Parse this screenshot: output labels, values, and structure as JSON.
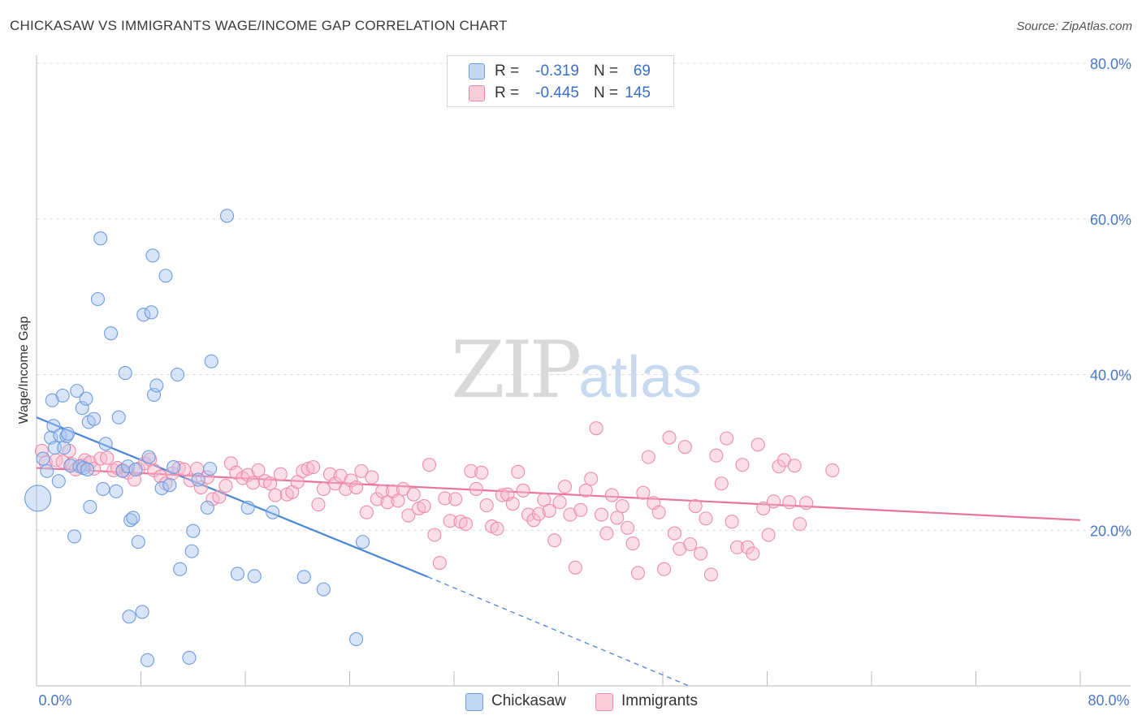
{
  "title": "CHICKASAW VS IMMIGRANTS WAGE/INCOME GAP CORRELATION CHART",
  "source": "Source: ZipAtlas.com",
  "watermark": {
    "zip": "ZIP",
    "atlas": "atlas"
  },
  "legend": {
    "rows": [
      {
        "r_label": "R =",
        "r_value": "-0.319",
        "n_label": "N =",
        "n_value": "69",
        "color": "#a9c6ef",
        "stroke": "#6f9be0"
      },
      {
        "r_label": "R =",
        "r_value": "-0.445",
        "n_label": "N =",
        "n_value": "145",
        "color": "#f7b8cb",
        "stroke": "#ee8daa"
      }
    ]
  },
  "bottom_legend": [
    {
      "label": "Chickasaw",
      "color": "#a9c6ef",
      "stroke": "#6f9be0"
    },
    {
      "label": "Immigrants",
      "color": "#f7b8cb",
      "stroke": "#ee8daa"
    }
  ],
  "chart_data": {
    "type": "scatter",
    "xlabel": "",
    "ylabel": "Wage/Income Gap",
    "xlim": [
      0,
      80
    ],
    "ylim": [
      0,
      80
    ],
    "x_tick_labels": [
      "0.0%",
      "80.0%"
    ],
    "y_tick_labels": [
      "20.0%",
      "40.0%",
      "60.0%",
      "80.0%"
    ],
    "y_ticks": [
      20,
      40,
      60,
      80
    ],
    "grid": "horizontal dashed",
    "legend_position": "top-center",
    "colors": {
      "chickasaw": "#4a86d8",
      "immigrants": "#e8739b"
    },
    "series": [
      {
        "name": "Chickasaw",
        "trend": {
          "x0": 0,
          "y0": 34.5,
          "x1": 30,
          "y1": 14,
          "dashed_to_x": 50,
          "dashed_to_y": 0
        },
        "points": [
          [
            0.1,
            24.1
          ],
          [
            0.5,
            29.2
          ],
          [
            0.8,
            27.6
          ],
          [
            1.1,
            31.9
          ],
          [
            1.3,
            33.4
          ],
          [
            1.2,
            36.7
          ],
          [
            1.4,
            30.6
          ],
          [
            1.7,
            26.3
          ],
          [
            1.8,
            32.2
          ],
          [
            2.0,
            37.3
          ],
          [
            2.1,
            30.6
          ],
          [
            2.3,
            32.1
          ],
          [
            2.4,
            32.4
          ],
          [
            2.6,
            28.3
          ],
          [
            2.9,
            19.2
          ],
          [
            3.1,
            37.9
          ],
          [
            3.3,
            28.2
          ],
          [
            3.5,
            35.7
          ],
          [
            3.6,
            28.0
          ],
          [
            3.8,
            36.9
          ],
          [
            3.9,
            27.8
          ],
          [
            4.0,
            33.9
          ],
          [
            4.1,
            23.0
          ],
          [
            4.4,
            34.3
          ],
          [
            4.7,
            49.7
          ],
          [
            4.9,
            57.5
          ],
          [
            5.1,
            25.3
          ],
          [
            5.3,
            31.1
          ],
          [
            5.7,
            45.3
          ],
          [
            6.1,
            25.0
          ],
          [
            6.3,
            34.5
          ],
          [
            6.6,
            27.6
          ],
          [
            6.8,
            40.2
          ],
          [
            7.0,
            28.2
          ],
          [
            7.1,
            8.9
          ],
          [
            7.2,
            21.3
          ],
          [
            7.4,
            21.6
          ],
          [
            7.6,
            27.8
          ],
          [
            7.8,
            18.5
          ],
          [
            8.1,
            9.5
          ],
          [
            8.2,
            47.7
          ],
          [
            8.5,
            3.3
          ],
          [
            8.6,
            29.4
          ],
          [
            8.8,
            48.0
          ],
          [
            8.9,
            55.3
          ],
          [
            9.0,
            37.4
          ],
          [
            9.2,
            38.6
          ],
          [
            9.6,
            25.4
          ],
          [
            9.9,
            52.7
          ],
          [
            10.2,
            25.8
          ],
          [
            10.5,
            28.1
          ],
          [
            10.8,
            40.0
          ],
          [
            11.0,
            15.0
          ],
          [
            11.7,
            3.6
          ],
          [
            11.9,
            17.3
          ],
          [
            12.0,
            19.9
          ],
          [
            12.4,
            26.5
          ],
          [
            13.1,
            22.9
          ],
          [
            13.3,
            27.9
          ],
          [
            13.4,
            41.7
          ],
          [
            14.6,
            60.4
          ],
          [
            15.4,
            14.4
          ],
          [
            16.2,
            22.9
          ],
          [
            16.7,
            14.1
          ],
          [
            18.1,
            22.3
          ],
          [
            20.5,
            14.0
          ],
          [
            22.0,
            12.4
          ],
          [
            24.5,
            6.0
          ],
          [
            25.0,
            18.5
          ]
        ]
      },
      {
        "name": "Immigrants",
        "trend": {
          "x0": 0,
          "y0": 28.0,
          "x1": 80,
          "y1": 21.3
        },
        "points": [
          [
            0.4,
            30.2
          ],
          [
            0.7,
            28.7
          ],
          [
            1.5,
            29.0
          ],
          [
            2.0,
            28.8
          ],
          [
            2.5,
            30.2
          ],
          [
            2.7,
            28.5
          ],
          [
            3.0,
            27.8
          ],
          [
            3.5,
            28.3
          ],
          [
            3.7,
            29.0
          ],
          [
            4.1,
            28.7
          ],
          [
            4.4,
            27.9
          ],
          [
            4.9,
            29.2
          ],
          [
            5.4,
            29.3
          ],
          [
            5.9,
            27.7
          ],
          [
            6.2,
            28.0
          ],
          [
            6.6,
            27.7
          ],
          [
            7.0,
            27.4
          ],
          [
            7.5,
            26.5
          ],
          [
            7.8,
            27.9
          ],
          [
            8.3,
            28.6
          ],
          [
            8.7,
            29.1
          ],
          [
            9.0,
            27.7
          ],
          [
            9.5,
            26.9
          ],
          [
            9.9,
            26.0
          ],
          [
            10.4,
            27.3
          ],
          [
            10.9,
            28.0
          ],
          [
            11.3,
            27.8
          ],
          [
            11.8,
            26.4
          ],
          [
            12.3,
            27.9
          ],
          [
            12.6,
            25.5
          ],
          [
            13.1,
            26.8
          ],
          [
            13.5,
            24.0
          ],
          [
            14.0,
            24.3
          ],
          [
            14.5,
            25.7
          ],
          [
            14.9,
            28.6
          ],
          [
            15.3,
            27.4
          ],
          [
            15.8,
            26.7
          ],
          [
            16.2,
            27.1
          ],
          [
            16.6,
            26.1
          ],
          [
            17.0,
            27.7
          ],
          [
            17.5,
            26.3
          ],
          [
            17.9,
            26.0
          ],
          [
            18.3,
            24.5
          ],
          [
            18.7,
            27.2
          ],
          [
            19.2,
            24.6
          ],
          [
            19.6,
            24.9
          ],
          [
            20.0,
            26.2
          ],
          [
            20.4,
            27.6
          ],
          [
            20.8,
            27.9
          ],
          [
            21.2,
            28.1
          ],
          [
            21.6,
            23.3
          ],
          [
            22.0,
            25.3
          ],
          [
            22.5,
            27.2
          ],
          [
            22.9,
            26.0
          ],
          [
            23.3,
            27.0
          ],
          [
            23.7,
            25.3
          ],
          [
            24.1,
            26.4
          ],
          [
            24.5,
            25.5
          ],
          [
            24.9,
            27.6
          ],
          [
            25.3,
            22.3
          ],
          [
            25.7,
            26.8
          ],
          [
            26.1,
            24.0
          ],
          [
            26.5,
            25.0
          ],
          [
            26.9,
            23.6
          ],
          [
            27.3,
            25.0
          ],
          [
            27.7,
            23.8
          ],
          [
            28.1,
            25.3
          ],
          [
            28.5,
            21.9
          ],
          [
            28.9,
            24.6
          ],
          [
            29.3,
            22.8
          ],
          [
            29.7,
            23.1
          ],
          [
            30.1,
            28.4
          ],
          [
            30.5,
            19.4
          ],
          [
            30.9,
            15.8
          ],
          [
            31.3,
            24.1
          ],
          [
            31.7,
            21.2
          ],
          [
            32.1,
            24.0
          ],
          [
            32.5,
            21.1
          ],
          [
            32.9,
            20.8
          ],
          [
            33.3,
            27.6
          ],
          [
            33.7,
            25.3
          ],
          [
            34.1,
            27.4
          ],
          [
            34.5,
            23.2
          ],
          [
            34.9,
            20.5
          ],
          [
            35.3,
            20.2
          ],
          [
            35.7,
            24.5
          ],
          [
            36.1,
            24.6
          ],
          [
            36.5,
            23.4
          ],
          [
            36.9,
            27.5
          ],
          [
            37.3,
            25.1
          ],
          [
            37.7,
            22.0
          ],
          [
            38.1,
            21.3
          ],
          [
            38.5,
            22.1
          ],
          [
            38.9,
            23.9
          ],
          [
            39.3,
            22.5
          ],
          [
            39.7,
            18.7
          ],
          [
            40.1,
            23.6
          ],
          [
            40.5,
            25.6
          ],
          [
            40.9,
            22.0
          ],
          [
            41.3,
            15.2
          ],
          [
            41.7,
            22.6
          ],
          [
            42.1,
            25.1
          ],
          [
            42.5,
            26.6
          ],
          [
            42.9,
            33.1
          ],
          [
            43.3,
            22.0
          ],
          [
            43.7,
            19.6
          ],
          [
            44.1,
            24.5
          ],
          [
            44.5,
            21.6
          ],
          [
            44.9,
            23.1
          ],
          [
            45.3,
            20.3
          ],
          [
            45.7,
            18.3
          ],
          [
            46.1,
            14.5
          ],
          [
            46.5,
            24.8
          ],
          [
            46.9,
            29.4
          ],
          [
            47.3,
            23.5
          ],
          [
            47.7,
            22.3
          ],
          [
            48.1,
            15.0
          ],
          [
            48.5,
            31.9
          ],
          [
            48.9,
            19.6
          ],
          [
            49.3,
            17.6
          ],
          [
            49.7,
            30.7
          ],
          [
            50.1,
            18.2
          ],
          [
            50.5,
            23.1
          ],
          [
            50.9,
            17.0
          ],
          [
            51.3,
            21.5
          ],
          [
            51.7,
            14.3
          ],
          [
            52.1,
            29.6
          ],
          [
            52.5,
            26.0
          ],
          [
            52.9,
            31.8
          ],
          [
            53.3,
            21.1
          ],
          [
            53.7,
            17.8
          ],
          [
            54.1,
            28.4
          ],
          [
            54.5,
            17.8
          ],
          [
            54.9,
            17.0
          ],
          [
            55.3,
            31.0
          ],
          [
            55.7,
            22.8
          ],
          [
            56.1,
            19.4
          ],
          [
            56.5,
            23.7
          ],
          [
            56.9,
            28.2
          ],
          [
            57.3,
            29.0
          ],
          [
            57.7,
            23.6
          ],
          [
            58.1,
            28.3
          ],
          [
            58.5,
            20.8
          ],
          [
            59.0,
            23.5
          ],
          [
            61.0,
            27.7
          ]
        ]
      }
    ]
  }
}
